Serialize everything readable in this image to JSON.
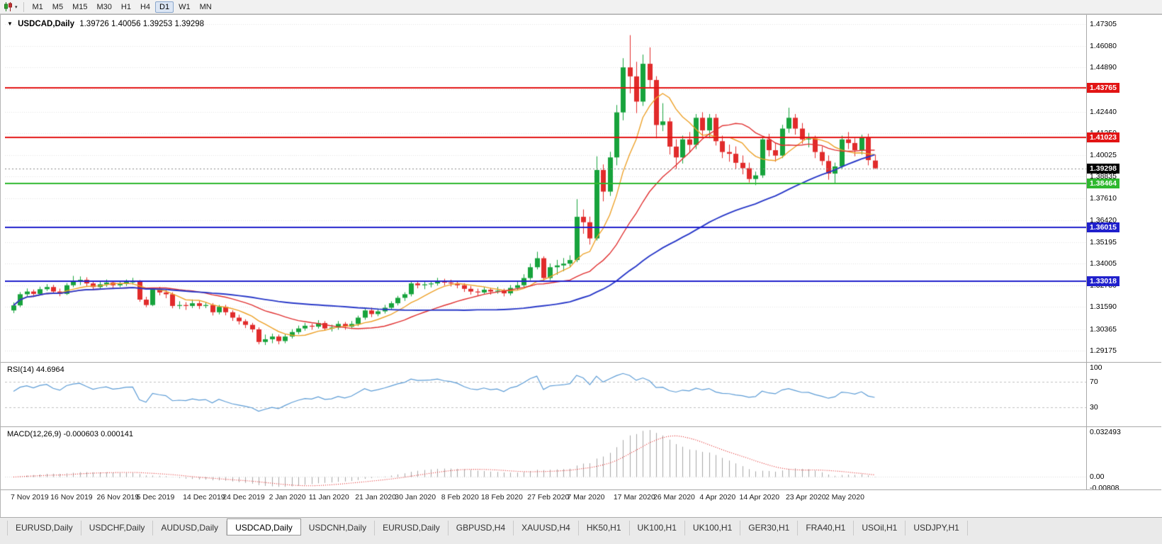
{
  "toolbar": {
    "timeframes": [
      "M1",
      "M5",
      "M15",
      "M30",
      "H1",
      "H4",
      "D1",
      "W1",
      "MN"
    ],
    "active_timeframe": "D1",
    "chart_type_icon": "candlestick-chart",
    "dropdown_icon": "▾"
  },
  "chart": {
    "collapse_icon": "▼",
    "symbol": "USDCAD,Daily",
    "ohlc_text": "1.39726 1.40056 1.39253 1.39298",
    "open": "1.39726",
    "high": "1.40056",
    "low": "1.39253",
    "close": "1.39298"
  },
  "price_scale": {
    "p_top": 1.47659,
    "p_bottom": 1.28539,
    "labels": [
      "1.47305",
      "1.46080",
      "1.44890",
      "1.43690",
      "1.42440",
      "1.41250",
      "1.40025",
      "1.38835",
      "1.37610",
      "1.36420",
      "1.35195",
      "1.34005",
      "1.32780",
      "1.31590",
      "1.30365",
      "1.29175"
    ]
  },
  "hlines": [
    {
      "value": 1.43765,
      "label": "1.43765",
      "color": "#e21414"
    },
    {
      "value": 1.41023,
      "label": "1.41023",
      "color": "#e21414"
    },
    {
      "value": 1.38464,
      "label": "1.38464",
      "color": "#2eb82e"
    },
    {
      "value": 1.36015,
      "label": "1.36015",
      "color": "#2020cc"
    },
    {
      "value": 1.33018,
      "label": "1.33018",
      "color": "#2020cc"
    }
  ],
  "current_price": {
    "value": 1.39298,
    "label": "1.39298",
    "badge_color": "#000000"
  },
  "indicators": {
    "rsi": {
      "label": "RSI(14) 44.6964",
      "period": 14,
      "current": 44.6964,
      "line_color": "#5b9bd5",
      "levels": [
        {
          "value": 100,
          "label": "100"
        },
        {
          "value": 70,
          "label": "70"
        },
        {
          "value": 30,
          "label": "30"
        }
      ]
    },
    "macd": {
      "label": "MACD(12,26,9) -0.000603 0.000141",
      "fast": 12,
      "slow": 26,
      "signal": 9,
      "main_value": -0.000603,
      "signal_value": 0.000141,
      "max": 0.032493,
      "min": -0.00808,
      "histogram_color": "#a6a6a6",
      "signal_color": "#e02020",
      "scale_labels": [
        {
          "value": 0.032493,
          "label": "0.032493"
        },
        {
          "value": 0,
          "label": "0.00"
        },
        {
          "value": -0.00808,
          "label": "-0.00808"
        }
      ]
    }
  },
  "x_axis": {
    "labels": [
      {
        "text": "7 Nov 2019",
        "bar": 0
      },
      {
        "text": "16 Nov 2019",
        "bar": 6
      },
      {
        "text": "26 Nov 2019",
        "bar": 13
      },
      {
        "text": "5 Dec 2019",
        "bar": 19
      },
      {
        "text": "14 Dec 2019",
        "bar": 26
      },
      {
        "text": "24 Dec 2019",
        "bar": 32
      },
      {
        "text": "2 Jan 2020",
        "bar": 39
      },
      {
        "text": "11 Jan 2020",
        "bar": 45
      },
      {
        "text": "21 Jan 2020",
        "bar": 52
      },
      {
        "text": "30 Jan 2020",
        "bar": 58
      },
      {
        "text": "8 Feb 2020",
        "bar": 65
      },
      {
        "text": "18 Feb 2020",
        "bar": 71
      },
      {
        "text": "27 Feb 2020",
        "bar": 78
      },
      {
        "text": "7 Mar 2020",
        "bar": 84
      },
      {
        "text": "17 Mar 2020",
        "bar": 91
      },
      {
        "text": "26 Mar 2020",
        "bar": 97
      },
      {
        "text": "4 Apr 2020",
        "bar": 104
      },
      {
        "text": "14 Apr 2020",
        "bar": 110
      },
      {
        "text": "23 Apr 2020",
        "bar": 117
      },
      {
        "text": "2 May 2020",
        "bar": 123
      }
    ]
  },
  "tabs": {
    "active_index": 3,
    "items": [
      "EURUSD,Daily",
      "USDCHF,Daily",
      "AUDUSD,Daily",
      "USDCAD,Daily",
      "USDCNH,Daily",
      "EURUSD,Daily",
      "GBPUSD,H4",
      "XAUUSD,H4",
      "HK50,H1",
      "UK100,H1",
      "UK100,H1",
      "GER30,H1",
      "FRA40,H1",
      "USOil,H1",
      "USDJPY,H1"
    ]
  },
  "colors": {
    "bull": "#17a33c",
    "bear": "#e12b2b",
    "grid": "#e2e2e2"
  },
  "chart_data": {
    "type": "candlestick",
    "symbol": "USDCAD",
    "timeframe": "Daily",
    "ohlc_format": [
      "open",
      "high",
      "low",
      "close"
    ],
    "candles": [
      [
        1.314,
        1.3185,
        1.3125,
        1.3168
      ],
      [
        1.3168,
        1.3242,
        1.3158,
        1.323
      ],
      [
        1.323,
        1.3262,
        1.3218,
        1.3245
      ],
      [
        1.3245,
        1.3256,
        1.3214,
        1.3232
      ],
      [
        1.3232,
        1.3272,
        1.3224,
        1.3258
      ],
      [
        1.3258,
        1.3286,
        1.3248,
        1.327
      ],
      [
        1.327,
        1.3282,
        1.3234,
        1.3245
      ],
      [
        1.3245,
        1.3261,
        1.3219,
        1.3232
      ],
      [
        1.3232,
        1.3292,
        1.3226,
        1.328
      ],
      [
        1.328,
        1.3332,
        1.3269,
        1.33
      ],
      [
        1.33,
        1.3329,
        1.3281,
        1.331
      ],
      [
        1.331,
        1.3324,
        1.3274,
        1.329
      ],
      [
        1.329,
        1.3306,
        1.3254,
        1.327
      ],
      [
        1.327,
        1.3301,
        1.3259,
        1.3285
      ],
      [
        1.3285,
        1.3312,
        1.3271,
        1.3295
      ],
      [
        1.3295,
        1.3306,
        1.3263,
        1.328
      ],
      [
        1.328,
        1.3301,
        1.3269,
        1.3287
      ],
      [
        1.3287,
        1.3312,
        1.3276,
        1.3298
      ],
      [
        1.3298,
        1.3321,
        1.3284,
        1.33
      ],
      [
        1.33,
        1.3309,
        1.3188,
        1.32
      ],
      [
        1.32,
        1.3216,
        1.3158,
        1.317
      ],
      [
        1.317,
        1.3262,
        1.3164,
        1.3255
      ],
      [
        1.3255,
        1.3271,
        1.3224,
        1.324
      ],
      [
        1.324,
        1.3256,
        1.3208,
        1.323
      ],
      [
        1.323,
        1.3241,
        1.3152,
        1.3165
      ],
      [
        1.3165,
        1.3191,
        1.3148,
        1.317
      ],
      [
        1.317,
        1.3186,
        1.3143,
        1.3165
      ],
      [
        1.3165,
        1.3201,
        1.3153,
        1.318
      ],
      [
        1.318,
        1.3192,
        1.3148,
        1.3165
      ],
      [
        1.3165,
        1.3186,
        1.3153,
        1.317
      ],
      [
        1.317,
        1.3181,
        1.3112,
        1.313
      ],
      [
        1.313,
        1.3171,
        1.3118,
        1.316
      ],
      [
        1.316,
        1.3171,
        1.3113,
        1.313
      ],
      [
        1.313,
        1.3141,
        1.3082,
        1.31
      ],
      [
        1.31,
        1.3116,
        1.3062,
        1.308
      ],
      [
        1.308,
        1.3091,
        1.3042,
        1.306
      ],
      [
        1.306,
        1.3071,
        1.3018,
        1.3035
      ],
      [
        1.3035,
        1.3046,
        1.2952,
        1.2965
      ],
      [
        1.2965,
        1.3006,
        1.2948,
        1.298
      ],
      [
        1.298,
        1.3011,
        1.2958,
        1.2995
      ],
      [
        1.2995,
        1.3006,
        1.2952,
        1.297
      ],
      [
        1.297,
        1.3011,
        1.2958,
        1.2995
      ],
      [
        1.2995,
        1.3036,
        1.2984,
        1.302
      ],
      [
        1.302,
        1.3056,
        1.3008,
        1.304
      ],
      [
        1.304,
        1.3071,
        1.3028,
        1.3055
      ],
      [
        1.3055,
        1.3066,
        1.3033,
        1.305
      ],
      [
        1.305,
        1.3086,
        1.3039,
        1.307
      ],
      [
        1.307,
        1.3081,
        1.3028,
        1.304
      ],
      [
        1.304,
        1.3061,
        1.3023,
        1.3045
      ],
      [
        1.3045,
        1.3081,
        1.3033,
        1.3065
      ],
      [
        1.3065,
        1.3076,
        1.3033,
        1.305
      ],
      [
        1.305,
        1.3081,
        1.3038,
        1.3065
      ],
      [
        1.3065,
        1.3111,
        1.3053,
        1.31
      ],
      [
        1.31,
        1.3151,
        1.3088,
        1.314
      ],
      [
        1.314,
        1.3156,
        1.3103,
        1.312
      ],
      [
        1.312,
        1.3151,
        1.3108,
        1.3135
      ],
      [
        1.3135,
        1.3171,
        1.3123,
        1.3155
      ],
      [
        1.3155,
        1.3191,
        1.3143,
        1.318
      ],
      [
        1.318,
        1.3221,
        1.3168,
        1.321
      ],
      [
        1.321,
        1.3241,
        1.3193,
        1.323
      ],
      [
        1.323,
        1.3301,
        1.3218,
        1.329
      ],
      [
        1.329,
        1.3306,
        1.3263,
        1.328
      ],
      [
        1.328,
        1.3301,
        1.3258,
        1.3285
      ],
      [
        1.3285,
        1.3306,
        1.3268,
        1.329
      ],
      [
        1.329,
        1.3321,
        1.3278,
        1.3305
      ],
      [
        1.3305,
        1.3316,
        1.3278,
        1.3295
      ],
      [
        1.3295,
        1.3311,
        1.3273,
        1.329
      ],
      [
        1.329,
        1.3301,
        1.3263,
        1.328
      ],
      [
        1.328,
        1.3291,
        1.3243,
        1.326
      ],
      [
        1.326,
        1.3276,
        1.3228,
        1.3245
      ],
      [
        1.3245,
        1.3261,
        1.3223,
        1.324
      ],
      [
        1.324,
        1.3271,
        1.3228,
        1.3255
      ],
      [
        1.3255,
        1.3266,
        1.3228,
        1.3245
      ],
      [
        1.3245,
        1.3271,
        1.3233,
        1.325
      ],
      [
        1.325,
        1.3261,
        1.3218,
        1.3235
      ],
      [
        1.3235,
        1.3281,
        1.3223,
        1.3265
      ],
      [
        1.3265,
        1.3301,
        1.3253,
        1.328
      ],
      [
        1.328,
        1.3341,
        1.3268,
        1.332
      ],
      [
        1.332,
        1.3401,
        1.3308,
        1.338
      ],
      [
        1.338,
        1.3466,
        1.3368,
        1.343
      ],
      [
        1.343,
        1.3441,
        1.3298,
        1.332
      ],
      [
        1.332,
        1.3401,
        1.3308,
        1.338
      ],
      [
        1.338,
        1.3421,
        1.3338,
        1.339
      ],
      [
        1.339,
        1.3431,
        1.3358,
        1.34
      ],
      [
        1.34,
        1.3446,
        1.3378,
        1.342
      ],
      [
        1.342,
        1.3758,
        1.3408,
        1.366
      ],
      [
        1.366,
        1.3701,
        1.3566,
        1.363
      ],
      [
        1.363,
        1.3661,
        1.3506,
        1.354
      ],
      [
        1.354,
        1.3996,
        1.3528,
        1.392
      ],
      [
        1.392,
        1.3951,
        1.3746,
        1.38
      ],
      [
        1.38,
        1.4021,
        1.3776,
        1.399
      ],
      [
        1.399,
        1.4281,
        1.3946,
        1.424
      ],
      [
        1.424,
        1.4541,
        1.4196,
        1.449
      ],
      [
        1.449,
        1.4669,
        1.4346,
        1.444
      ],
      [
        1.444,
        1.4521,
        1.4236,
        1.43
      ],
      [
        1.43,
        1.4561,
        1.4276,
        1.451
      ],
      [
        1.451,
        1.4601,
        1.4376,
        1.442
      ],
      [
        1.442,
        1.4441,
        1.4096,
        1.417
      ],
      [
        1.417,
        1.4291,
        1.4136,
        1.419
      ],
      [
        1.419,
        1.4211,
        1.4006,
        1.405
      ],
      [
        1.405,
        1.4091,
        1.3926,
        1.399
      ],
      [
        1.399,
        1.4111,
        1.3956,
        1.409
      ],
      [
        1.409,
        1.4131,
        1.4016,
        1.406
      ],
      [
        1.406,
        1.4231,
        1.4036,
        1.421
      ],
      [
        1.421,
        1.4241,
        1.4106,
        1.414
      ],
      [
        1.414,
        1.4231,
        1.4096,
        1.421
      ],
      [
        1.421,
        1.4231,
        1.4056,
        1.408
      ],
      [
        1.408,
        1.4111,
        1.3986,
        1.402
      ],
      [
        1.402,
        1.4061,
        1.3966,
        1.401
      ],
      [
        1.401,
        1.4051,
        1.3926,
        1.396
      ],
      [
        1.396,
        1.4001,
        1.3896,
        1.393
      ],
      [
        1.393,
        1.3961,
        1.3851,
        1.387
      ],
      [
        1.387,
        1.3911,
        1.3836,
        1.389
      ],
      [
        1.389,
        1.4101,
        1.3876,
        1.409
      ],
      [
        1.409,
        1.4121,
        1.3996,
        1.403
      ],
      [
        1.403,
        1.4071,
        1.3966,
        1.4
      ],
      [
        1.4,
        1.4171,
        1.3986,
        1.415
      ],
      [
        1.415,
        1.4266,
        1.4126,
        1.421
      ],
      [
        1.421,
        1.4231,
        1.4116,
        1.415
      ],
      [
        1.415,
        1.4181,
        1.4066,
        1.409
      ],
      [
        1.409,
        1.4126,
        1.4046,
        1.4095
      ],
      [
        1.4095,
        1.4111,
        1.3986,
        1.402
      ],
      [
        1.402,
        1.4051,
        1.3946,
        1.397
      ],
      [
        1.397,
        1.4001,
        1.3866,
        1.39
      ],
      [
        1.39,
        1.3961,
        1.3846,
        1.394
      ],
      [
        1.394,
        1.4111,
        1.3926,
        1.409
      ],
      [
        1.409,
        1.4131,
        1.4036,
        1.407
      ],
      [
        1.407,
        1.4096,
        1.3996,
        1.403
      ],
      [
        1.403,
        1.4116,
        1.4006,
        1.4105
      ],
      [
        1.4105,
        1.4121,
        1.3946,
        1.3975
      ],
      [
        1.39726,
        1.40056,
        1.39253,
        1.39298
      ]
    ],
    "overlays": [
      {
        "name": "ma-fast",
        "type": "sma",
        "period": 8,
        "color": "#eda128",
        "width": 1.4
      },
      {
        "name": "ma-mid",
        "type": "sma",
        "period": 20,
        "color": "#e03030",
        "width": 1.4
      },
      {
        "name": "ma-slow",
        "type": "sma",
        "period": 50,
        "color": "#2838c8",
        "width": 1.9
      }
    ]
  }
}
